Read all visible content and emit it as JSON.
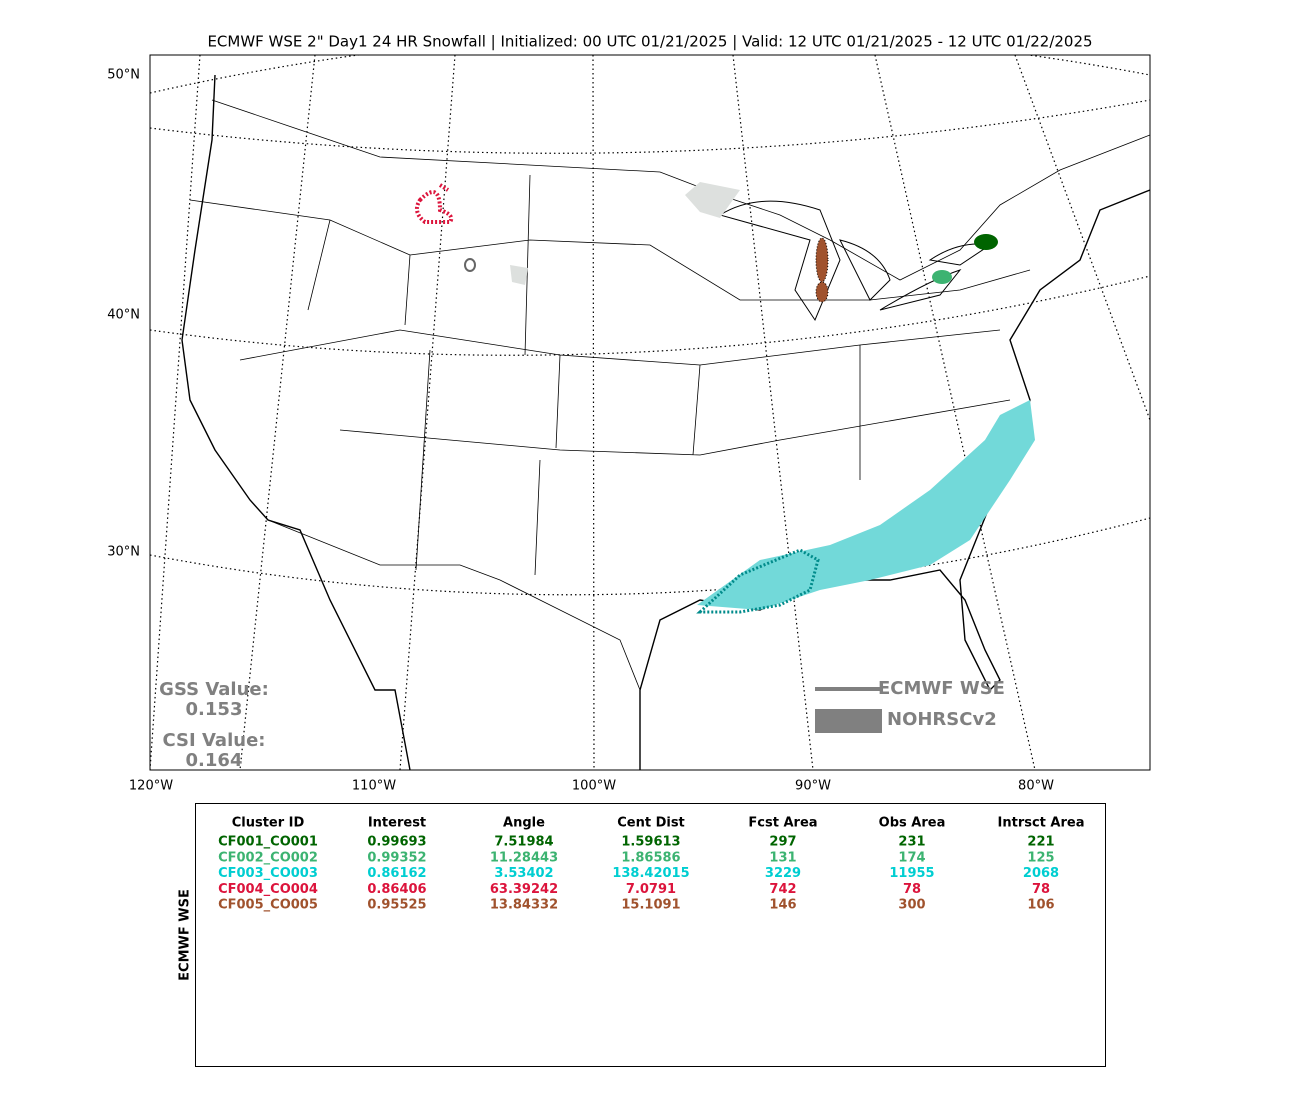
{
  "title": "ECMWF WSE 2\" Day1 24 HR Snowfall | Initialized: 00 UTC 01/21/2025 | Valid: 12 UTC 01/21/2025 - 12 UTC 01/22/2025",
  "map": {
    "lat_labels": [
      "50°N",
      "40°N",
      "30°N"
    ],
    "lon_labels": [
      "120°W",
      "110°W",
      "100°W",
      "90°W",
      "80°W"
    ],
    "scores": [
      {
        "label": "GSS Value:",
        "value": "0.153"
      },
      {
        "label": "CSI Value:",
        "value": "0.164"
      }
    ],
    "legend": [
      {
        "name": "ECMWF WSE",
        "style": "line",
        "color": "#808080"
      },
      {
        "name": "NOHRSCv2",
        "style": "fill",
        "color": "#808080"
      }
    ]
  },
  "table": {
    "side_label": "ECMWF WSE",
    "headers": [
      "Cluster ID",
      "Interest",
      "Angle",
      "Cent Dist",
      "Fcst Area",
      "Obs Area",
      "Intrsct Area"
    ],
    "rows": [
      {
        "color": "#006400",
        "cells": [
          "CF001_CO001",
          "0.99693",
          "7.51984",
          "1.59613",
          "297",
          "231",
          "221"
        ]
      },
      {
        "color": "#3cb371",
        "cells": [
          "CF002_CO002",
          "0.99352",
          "11.28443",
          "1.86586",
          "131",
          "174",
          "125"
        ]
      },
      {
        "color": "#00ced1",
        "cells": [
          "CF003_CO003",
          "0.86162",
          "3.53402",
          "138.42015",
          "3229",
          "11955",
          "2068"
        ]
      },
      {
        "color": "#dc143c",
        "cells": [
          "CF004_CO004",
          "0.86406",
          "63.39242",
          "7.0791",
          "742",
          "78",
          "78"
        ]
      },
      {
        "color": "#a0522d",
        "cells": [
          "CF005_CO005",
          "0.95525",
          "13.84332",
          "15.1091",
          "146",
          "300",
          "106"
        ]
      }
    ]
  }
}
